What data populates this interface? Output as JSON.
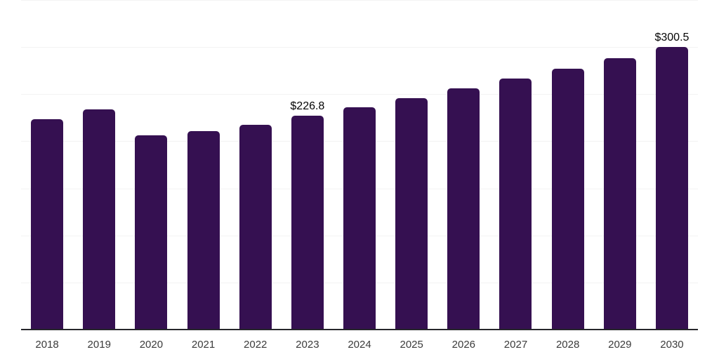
{
  "chart_data": {
    "type": "bar",
    "title": "",
    "xlabel": "",
    "ylabel": "",
    "categories": [
      "2018",
      "2019",
      "2020",
      "2021",
      "2022",
      "2023",
      "2024",
      "2025",
      "2026",
      "2027",
      "2028",
      "2029",
      "2030"
    ],
    "values": [
      223.4,
      234.2,
      206.5,
      211.0,
      217.5,
      226.8,
      236.1,
      245.8,
      255.9,
      266.3,
      277.2,
      288.6,
      300.5
    ],
    "bar_labels": [
      "",
      "",
      "",
      "",
      "",
      "$226.8",
      "",
      "",
      "",
      "",
      "",
      "",
      "$300.5"
    ],
    "ylim": [
      0,
      350
    ],
    "gridline_step": 50,
    "grid": "horizontal",
    "legend": false,
    "colors": {
      "bar": "#351051",
      "axis_line": "#26262b",
      "gridline": "#f3f3f3",
      "tick_label": "#3b3b3b",
      "value_label": "#040404",
      "background": "#ffffff"
    }
  }
}
